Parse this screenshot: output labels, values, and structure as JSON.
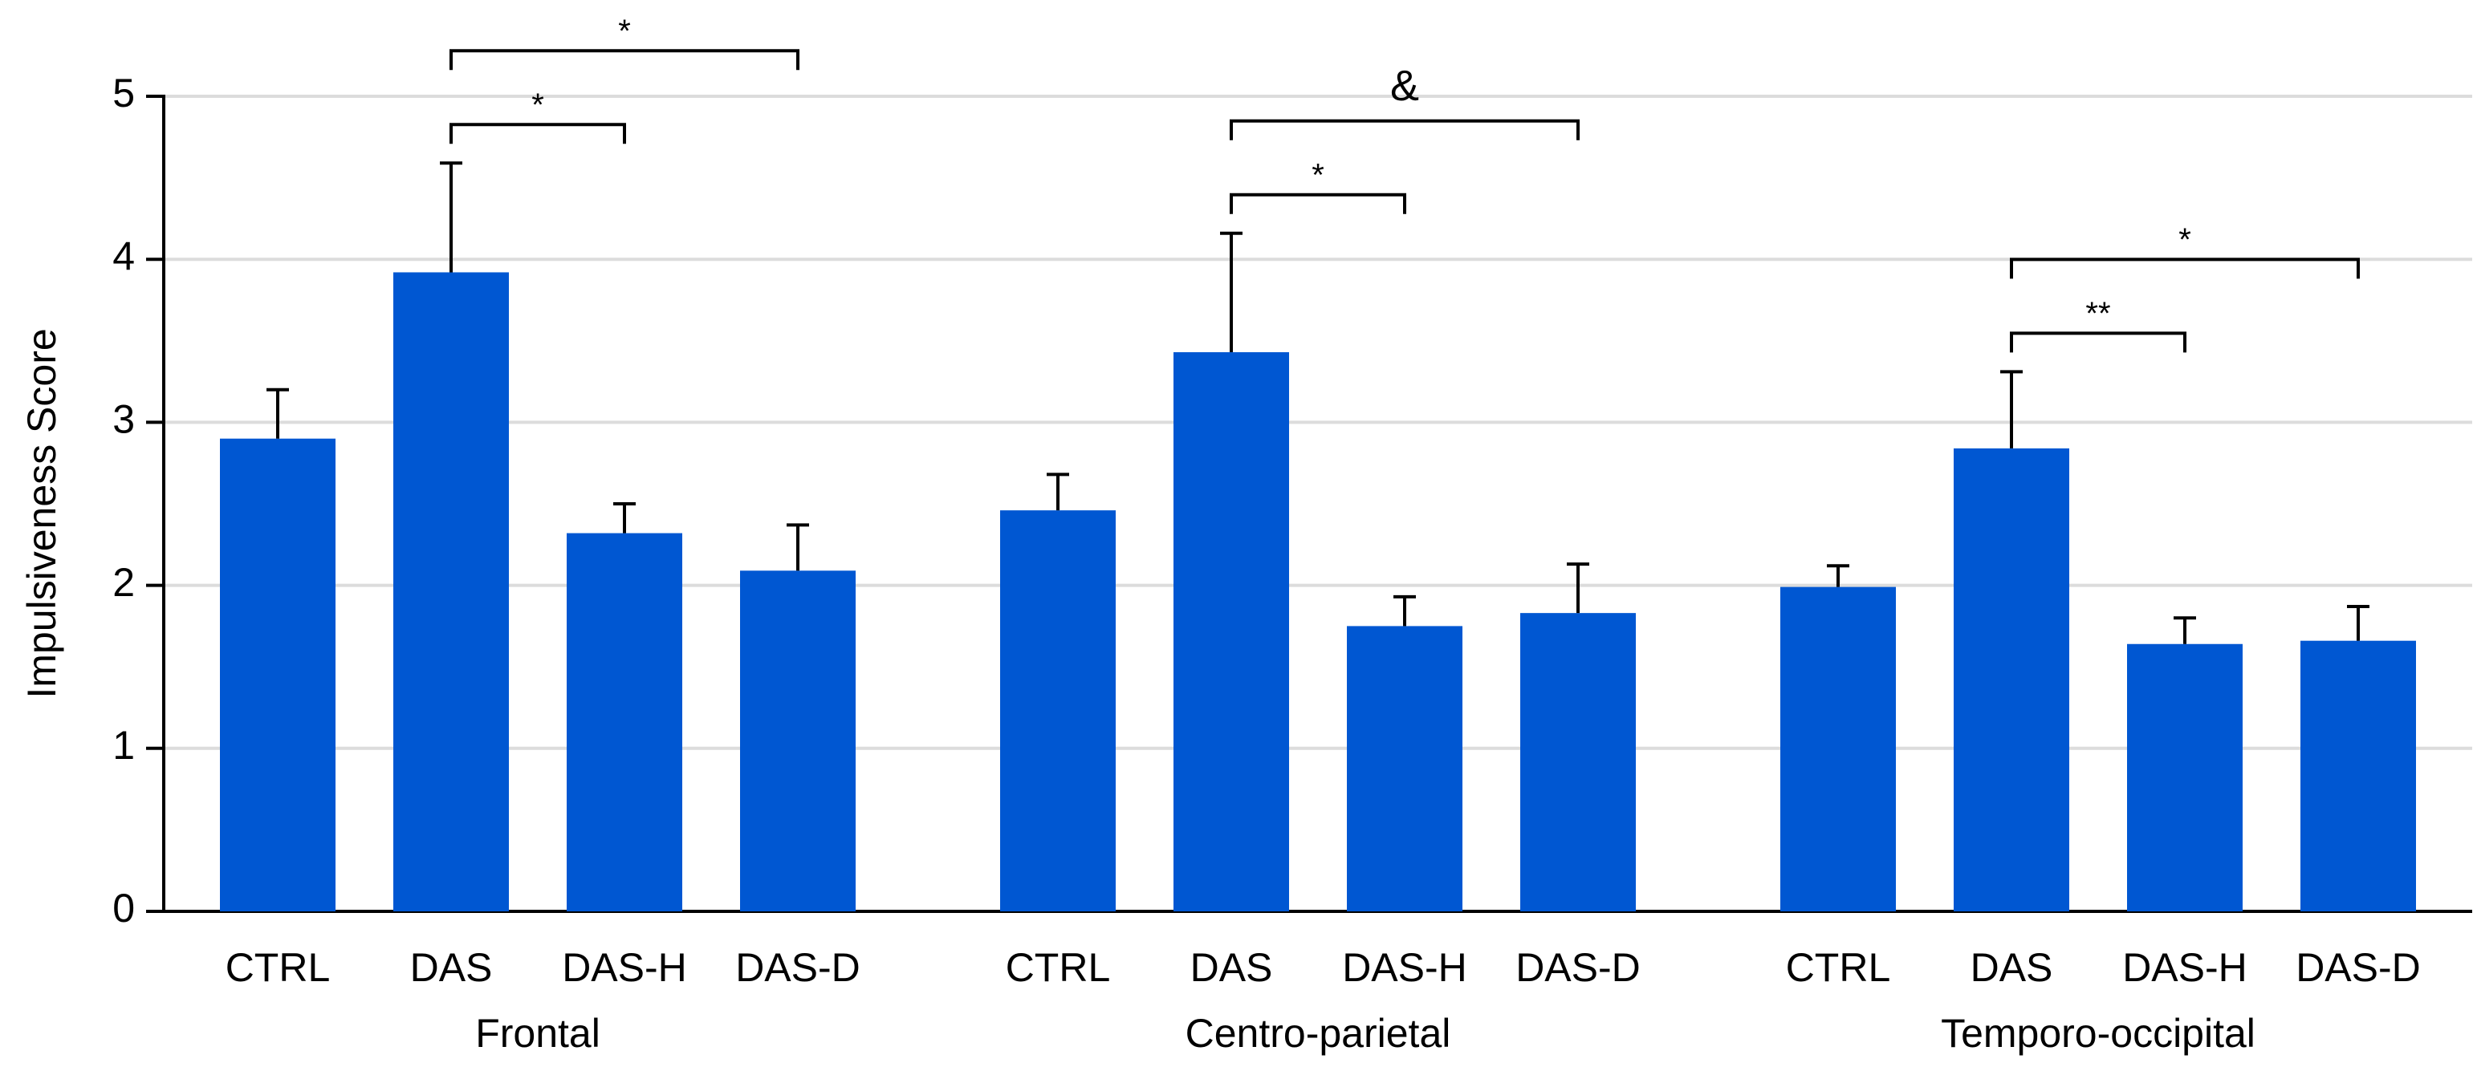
{
  "chart_data": {
    "type": "bar",
    "y_label": "Impulsiveness Score",
    "color": "#0057d2",
    "ylim": [
      0,
      5
    ],
    "yticks": [
      0,
      1,
      2,
      3,
      4,
      5
    ],
    "grid": true,
    "groups": [
      {
        "name": "Frontal",
        "categories": [
          "CTRL",
          "DAS",
          "DAS-H",
          "DAS-D"
        ],
        "values": [
          2.9,
          3.92,
          2.32,
          2.09
        ],
        "errors": [
          0.3,
          0.67,
          0.18,
          0.28
        ],
        "brackets": [
          {
            "label": "*",
            "pair": [
              "DAS",
              "DAS-H"
            ]
          },
          {
            "label": "*",
            "pair": [
              "DAS",
              "DAS-D"
            ]
          }
        ]
      },
      {
        "name": "Centro-parietal",
        "categories": [
          "CTRL",
          "DAS",
          "DAS-H",
          "DAS-D"
        ],
        "values": [
          2.46,
          3.43,
          1.75,
          1.83
        ],
        "errors": [
          0.22,
          0.73,
          0.18,
          0.3
        ],
        "brackets": [
          {
            "label": "*",
            "pair": [
              "DAS",
              "DAS-H"
            ]
          },
          {
            "label": "&",
            "pair": [
              "DAS",
              "DAS-D"
            ]
          }
        ]
      },
      {
        "name": "Temporo-occipital",
        "categories": [
          "CTRL",
          "DAS",
          "DAS-H",
          "DAS-D"
        ],
        "values": [
          1.99,
          2.84,
          1.64,
          1.66
        ],
        "errors": [
          0.13,
          0.47,
          0.16,
          0.21
        ],
        "brackets": [
          {
            "label": "**",
            "pair": [
              "DAS",
              "DAS-H"
            ]
          },
          {
            "label": "*",
            "pair": [
              "DAS",
              "DAS-D"
            ]
          }
        ]
      }
    ]
  }
}
